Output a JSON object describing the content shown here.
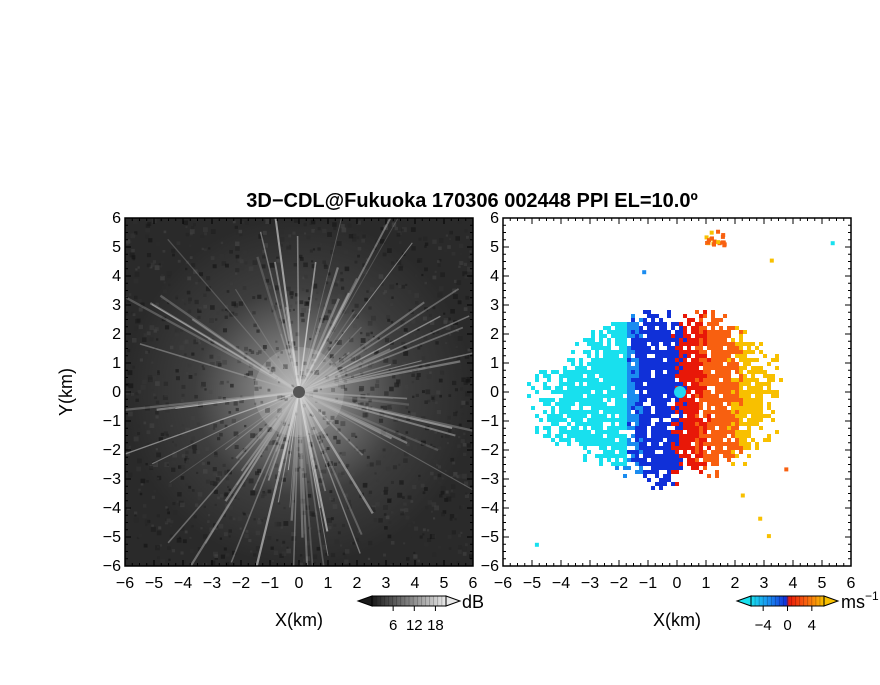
{
  "figure": {
    "title": "3D−CDL@Fukuoka 170306 002448 PPI EL=10.0º"
  },
  "chart_data": [
    {
      "type": "heatmap",
      "panel": "left",
      "quantity": "backscatter intensity",
      "xlabel": "X(km)",
      "ylabel": "Y(km)",
      "xlim": [
        -6,
        6
      ],
      "ylim": [
        -6,
        6
      ],
      "xticks": [
        "−6",
        "−5",
        "−4",
        "−3",
        "−2",
        "−1",
        "0",
        "1",
        "2",
        "3",
        "4",
        "5",
        "6"
      ],
      "yticks": [
        "−6",
        "−5",
        "−4",
        "−3",
        "−2",
        "−1",
        "0",
        "1",
        "2",
        "3",
        "4",
        "5",
        "6"
      ],
      "colormap": "grayscale",
      "colorbar": {
        "unit": "dB",
        "ticks": [
          "6",
          "12",
          "18"
        ],
        "tick_values": [
          6,
          12,
          18
        ],
        "range": [
          0,
          21
        ],
        "extend": "both"
      },
      "colors": {
        "background": "#2a2a2a",
        "max": "#d8d8d8"
      }
    },
    {
      "type": "heatmap",
      "panel": "right",
      "quantity": "radial velocity",
      "xlabel": "X(km)",
      "ylabel": "",
      "xlim": [
        -6,
        6
      ],
      "ylim": [
        -6,
        6
      ],
      "xticks": [
        "−6",
        "−5",
        "−4",
        "−3",
        "−2",
        "−1",
        "0",
        "1",
        "2",
        "3",
        "4",
        "5",
        "6"
      ],
      "yticks": [
        "−6",
        "−5",
        "−4",
        "−3",
        "−2",
        "−1",
        "0",
        "1",
        "2",
        "3",
        "4",
        "5",
        "6"
      ],
      "colormap": "diverging blue-red",
      "colorbar": {
        "unit": "ms",
        "unit_exponent": "−1",
        "ticks": [
          "−4",
          "0",
          "4"
        ],
        "tick_values": [
          -4,
          0,
          4
        ],
        "range": [
          -6,
          6
        ],
        "extend": "both"
      },
      "colors": {
        "neg_far": "#18e0ee",
        "neg_mid": "#1a8cf0",
        "neg_near": "#1030d8",
        "pos_near": "#e81808",
        "pos_mid": "#f86010",
        "pos_far": "#f8c000"
      }
    }
  ]
}
